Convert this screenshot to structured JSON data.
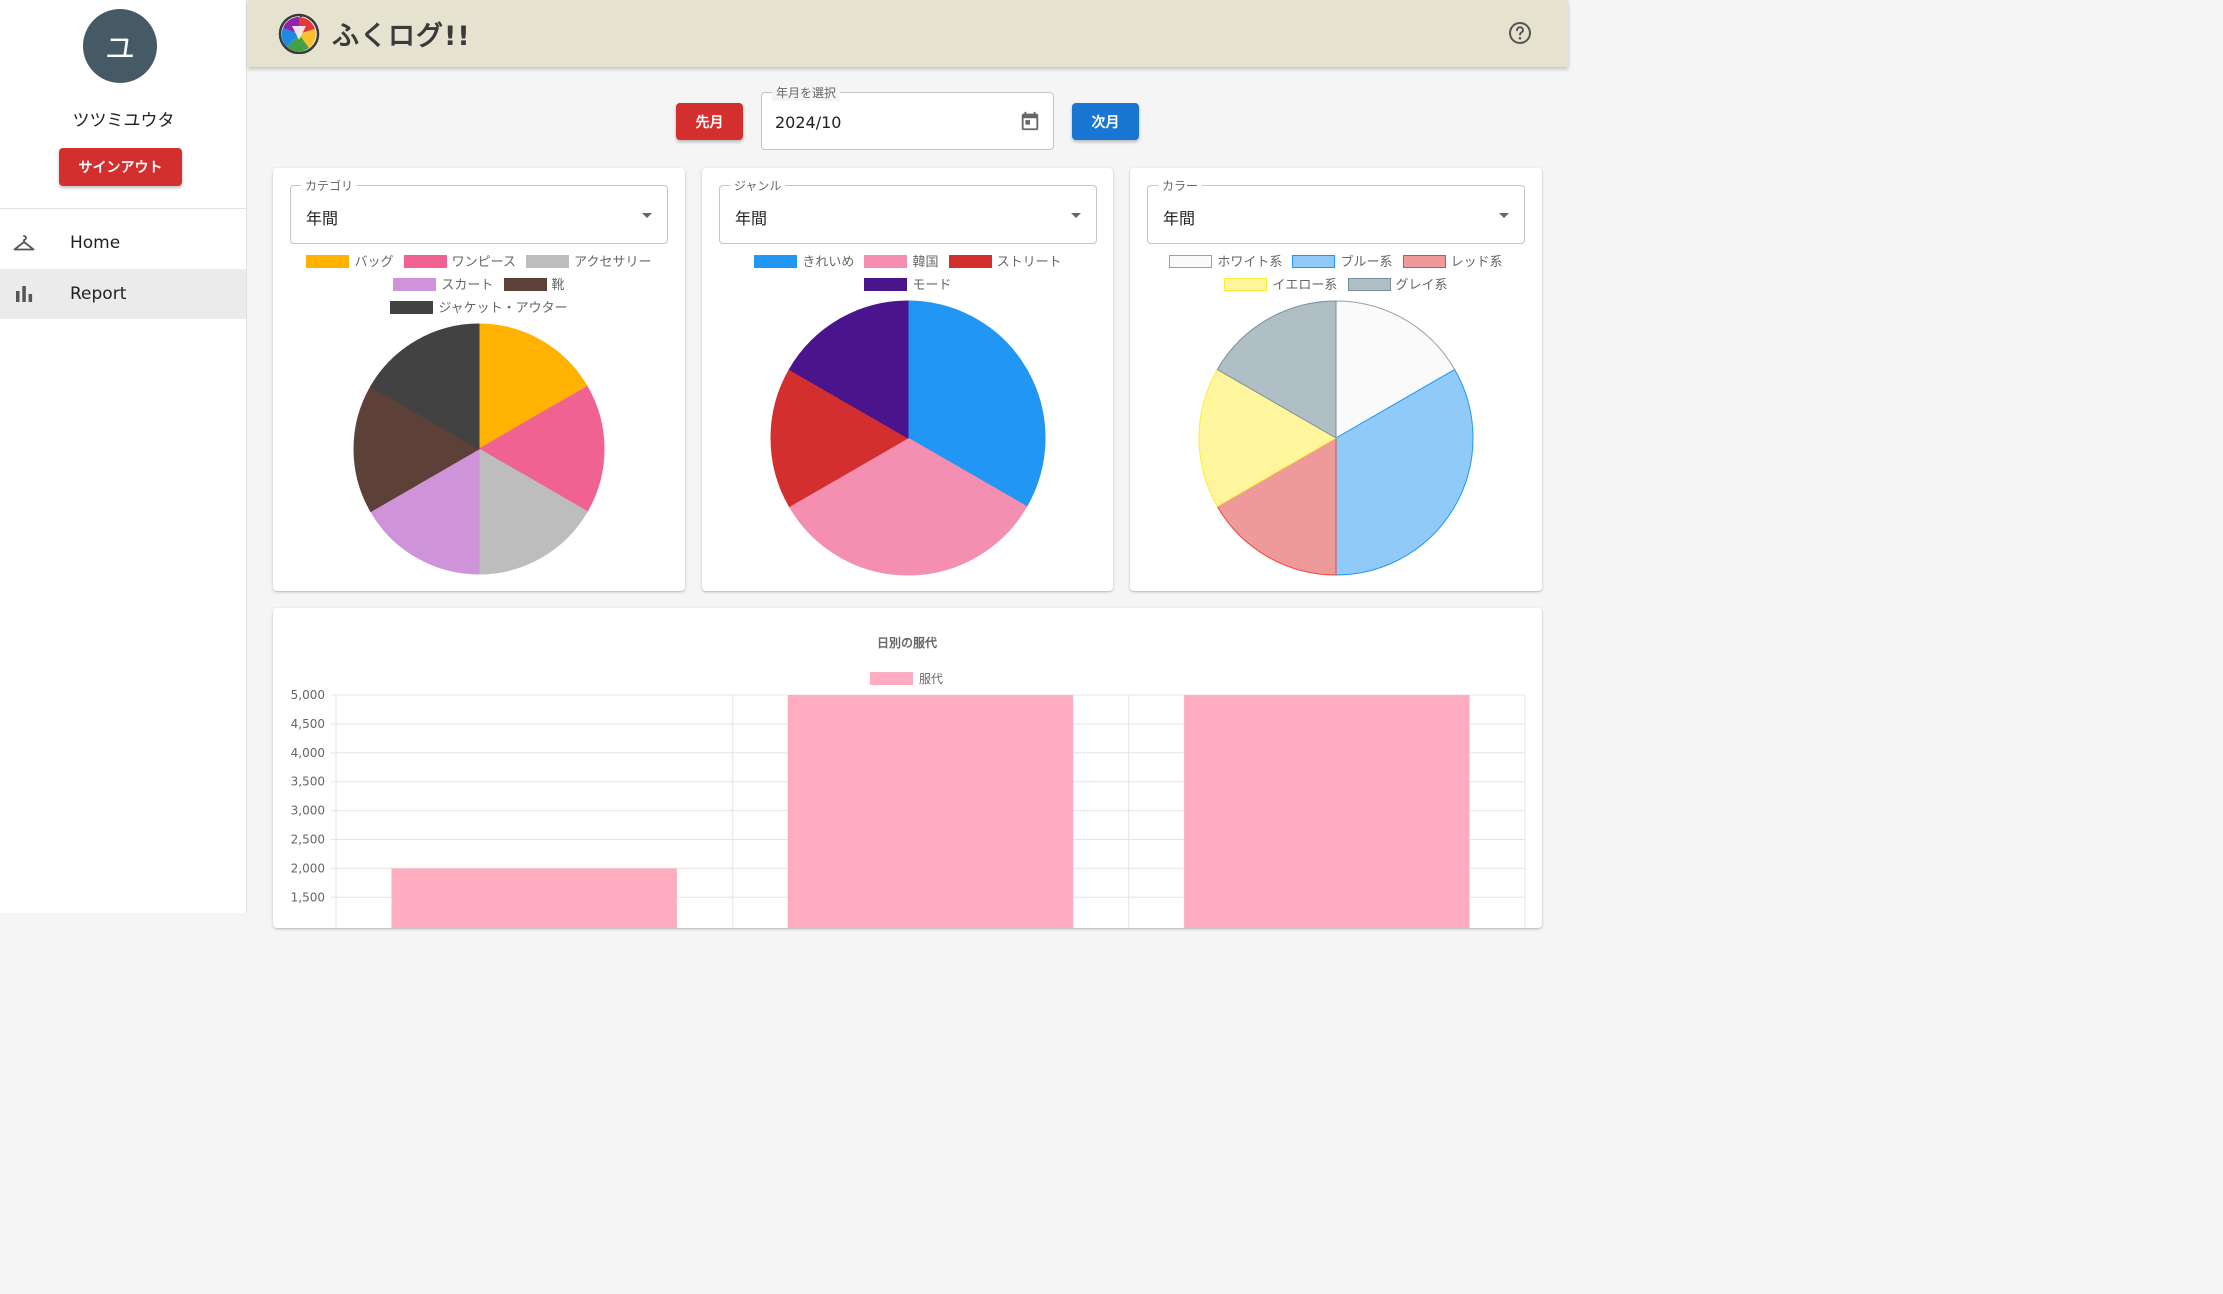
{
  "sidebar": {
    "avatar_initial": "ユ",
    "user_name": "ツツミユウタ",
    "signout_label": "サインアウト",
    "nav": [
      {
        "label": "Home",
        "icon": "hanger-icon",
        "active": false
      },
      {
        "label": "Report",
        "icon": "bar-chart-icon",
        "active": true
      }
    ]
  },
  "header": {
    "title": "ふくログ!!",
    "logo_icon": "app-logo-icon",
    "help_icon": "help-icon",
    "background": "#e6e2d0"
  },
  "month_selector": {
    "prev_label": "先月",
    "next_label": "次月",
    "field_label": "年月を選択",
    "value": "2024/10",
    "icon": "calendar-icon"
  },
  "colors": {
    "prev": "#d32f2f",
    "next": "#1976d2",
    "signout": "#d32f2f"
  },
  "chart_data": [
    {
      "type": "pie",
      "select_label": "カテゴリ",
      "select_value": "年間",
      "categories": [
        "バッグ",
        "ワンピース",
        "アクセサリー",
        "スカート",
        "靴",
        "ジャケット・アウター"
      ],
      "values": [
        1,
        1,
        1,
        1,
        1,
        1
      ],
      "colors": [
        "#ffb300",
        "#f06292",
        "#bdbdbd",
        "#ce93d8",
        "#5d4037",
        "#424242"
      ],
      "borders": [
        "#ffb300",
        "#f06292",
        "#bdbdbd",
        "#ce93d8",
        "#5d4037",
        "#424242"
      ]
    },
    {
      "type": "pie",
      "select_label": "ジャンル",
      "select_value": "年間",
      "categories": [
        "きれいめ",
        "韓国",
        "ストリート",
        "モード"
      ],
      "values": [
        2,
        2,
        1,
        1
      ],
      "colors": [
        "#2196f3",
        "#f48fb1",
        "#d32f2f",
        "#4a148c"
      ],
      "borders": [
        "#2196f3",
        "#f48fb1",
        "#d32f2f",
        "#4a148c"
      ]
    },
    {
      "type": "pie",
      "select_label": "カラー",
      "select_value": "年間",
      "categories": [
        "ホワイト系",
        "ブルー系",
        "レッド系",
        "イエロー系",
        "グレイ系"
      ],
      "values": [
        1,
        2,
        1,
        1,
        1
      ],
      "colors": [
        "#fafafa",
        "#90caf9",
        "#ef9a9a",
        "#fff59d",
        "#b0bec5"
      ],
      "borders": [
        "#9e9e9e",
        "#2196f3",
        "#f44336",
        "#ffeb3b",
        "#78909c"
      ]
    },
    {
      "type": "bar",
      "title": "日別の服代",
      "series": [
        {
          "name": "服代",
          "color": "#ffabc0",
          "values": [
            2000,
            5000,
            5000
          ]
        }
      ],
      "categories": [
        "",
        "",
        ""
      ],
      "y_ticks": [
        "5,000",
        "4,500",
        "4,000",
        "3,500",
        "3,000",
        "2,500",
        "2,000",
        "1,500"
      ],
      "ylim": [
        1500,
        5000
      ]
    }
  ]
}
